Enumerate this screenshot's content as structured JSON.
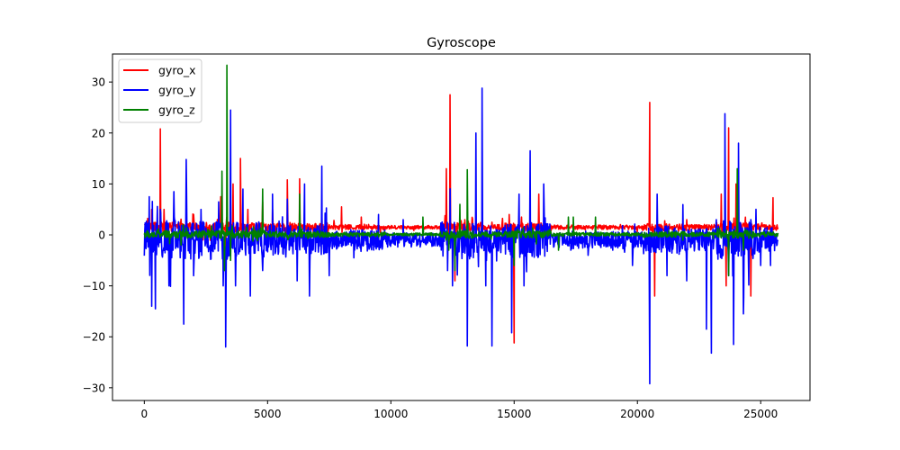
{
  "chart_data": {
    "type": "line",
    "title": "Gyroscope",
    "xlabel": "",
    "ylabel": "",
    "xlim": [
      -1290,
      27000
    ],
    "ylim": [
      -32.5,
      35.5
    ],
    "x_ticks": [
      0,
      5000,
      10000,
      15000,
      20000,
      25000
    ],
    "x_tick_labels": [
      "0",
      "5000",
      "10000",
      "15000",
      "20000",
      "25000"
    ],
    "y_ticks": [
      -30,
      -20,
      -10,
      0,
      10,
      20,
      30
    ],
    "y_tick_labels": [
      "−30",
      "−20",
      "−10",
      "0",
      "10",
      "20",
      "30"
    ],
    "grid": false,
    "legend_position": "top-left",
    "x_range": [
      0,
      25700
    ],
    "series": [
      {
        "name": "gyro_x",
        "color": "#ff0000",
        "baseline": 1.5,
        "noise": 0.5,
        "spikes": [
          [
            300,
            5
          ],
          [
            650,
            20.8
          ],
          [
            800,
            5
          ],
          [
            1200,
            3
          ],
          [
            2000,
            4
          ],
          [
            3100,
            7.5
          ],
          [
            3300,
            -4
          ],
          [
            3600,
            10
          ],
          [
            3900,
            15
          ],
          [
            4200,
            5
          ],
          [
            4800,
            6.5
          ],
          [
            5200,
            5
          ],
          [
            5800,
            10.8
          ],
          [
            6300,
            11
          ],
          [
            7200,
            4.5
          ],
          [
            8000,
            5.5
          ],
          [
            8800,
            3.5
          ],
          [
            12250,
            13
          ],
          [
            12400,
            27.5
          ],
          [
            12600,
            -9
          ],
          [
            13000,
            3
          ],
          [
            14800,
            4
          ],
          [
            15000,
            -21.2
          ],
          [
            15300,
            3.5
          ],
          [
            16000,
            8
          ],
          [
            20500,
            26
          ],
          [
            20700,
            -12
          ],
          [
            22000,
            3
          ],
          [
            23400,
            8
          ],
          [
            23700,
            21
          ],
          [
            23600,
            -10
          ],
          [
            24000,
            10
          ],
          [
            24600,
            -12
          ],
          [
            25500,
            7.3
          ]
        ]
      },
      {
        "name": "gyro_y",
        "color": "#0000ff",
        "baseline": -1.0,
        "noise": 2.0,
        "spikes": [
          [
            200,
            7.5
          ],
          [
            300,
            -14
          ],
          [
            450,
            -14.5
          ],
          [
            650,
            5
          ],
          [
            1000,
            -10
          ],
          [
            1200,
            8.5
          ],
          [
            1600,
            -17.5
          ],
          [
            1700,
            14.8
          ],
          [
            2000,
            -8
          ],
          [
            2300,
            5
          ],
          [
            3200,
            -10
          ],
          [
            3300,
            -22
          ],
          [
            3500,
            24.5
          ],
          [
            3700,
            -10
          ],
          [
            4000,
            9
          ],
          [
            4300,
            -12
          ],
          [
            4800,
            -7
          ],
          [
            5200,
            8
          ],
          [
            5800,
            7
          ],
          [
            6200,
            -9
          ],
          [
            6500,
            10
          ],
          [
            6700,
            -12
          ],
          [
            7200,
            13.5
          ],
          [
            7500,
            -8
          ],
          [
            8500,
            -4.5
          ],
          [
            9500,
            4
          ],
          [
            10500,
            3
          ],
          [
            12300,
            -7
          ],
          [
            12500,
            -10
          ],
          [
            12800,
            3
          ],
          [
            13100,
            -21.8
          ],
          [
            13450,
            20
          ],
          [
            13700,
            28.8
          ],
          [
            13850,
            -10
          ],
          [
            14100,
            -21.8
          ],
          [
            14900,
            -19.2
          ],
          [
            15200,
            8
          ],
          [
            15400,
            -10
          ],
          [
            15650,
            16.5
          ],
          [
            16200,
            10
          ],
          [
            17300,
            -3
          ],
          [
            18000,
            -4
          ],
          [
            19000,
            -3
          ],
          [
            19800,
            -6
          ],
          [
            20500,
            -29.2
          ],
          [
            20800,
            8
          ],
          [
            21200,
            -8
          ],
          [
            22000,
            -9
          ],
          [
            22800,
            -18.5
          ],
          [
            23000,
            -23.2
          ],
          [
            23200,
            3
          ],
          [
            23550,
            23.8
          ],
          [
            23700,
            -8
          ],
          [
            23900,
            -21.5
          ],
          [
            24100,
            18
          ],
          [
            24300,
            -15.5
          ],
          [
            24600,
            3
          ],
          [
            25000,
            -6
          ],
          [
            25400,
            -6
          ]
        ]
      },
      {
        "name": "gyro_z",
        "color": "#008000",
        "baseline": 0.1,
        "noise": 0.4,
        "spikes": [
          [
            3150,
            12.5
          ],
          [
            3250,
            -7
          ],
          [
            3350,
            33.3
          ],
          [
            3500,
            -5
          ],
          [
            4800,
            9
          ],
          [
            6300,
            8
          ],
          [
            11300,
            3.5
          ],
          [
            12350,
            -3
          ],
          [
            12600,
            -7
          ],
          [
            12800,
            6
          ],
          [
            13100,
            12.8
          ],
          [
            15000,
            -6
          ],
          [
            16800,
            -3
          ],
          [
            17200,
            3.5
          ],
          [
            17400,
            3.5
          ],
          [
            18300,
            3.5
          ],
          [
            23700,
            -8
          ],
          [
            24050,
            13
          ],
          [
            24300,
            -3
          ]
        ]
      }
    ]
  }
}
